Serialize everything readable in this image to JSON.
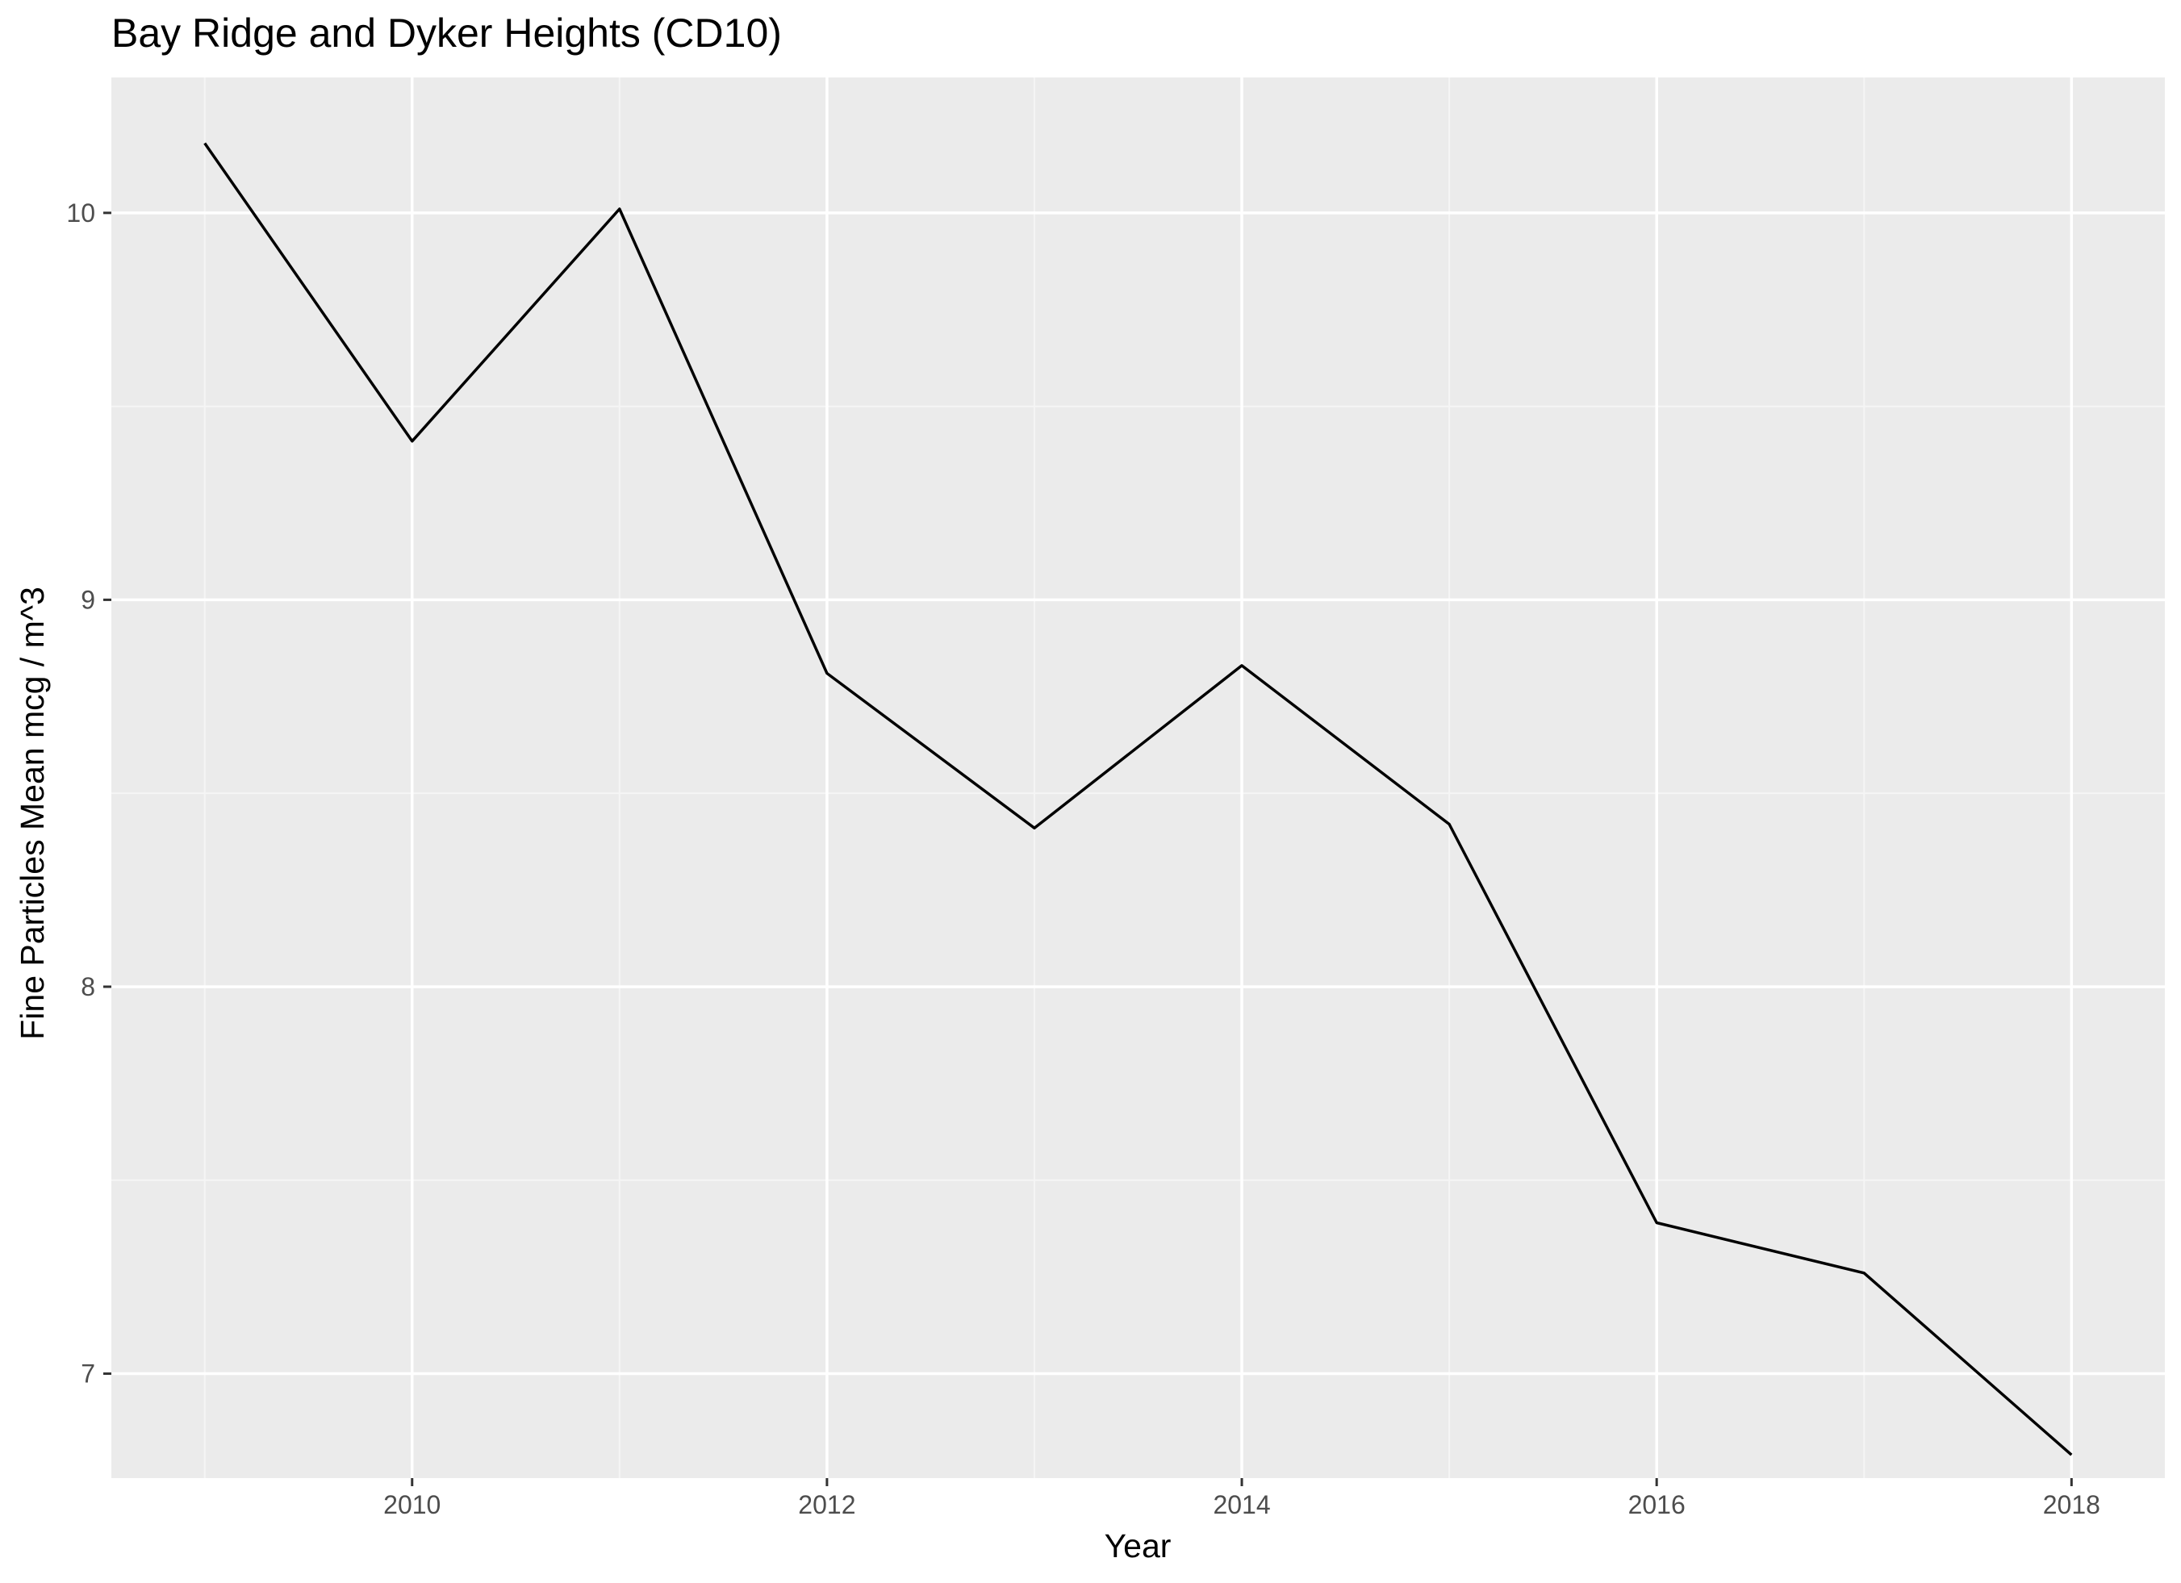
{
  "chart_data": {
    "type": "line",
    "title": "Bay Ridge and Dyker Heights (CD10)",
    "xlabel": "Year",
    "ylabel": "Fine Particles Mean mcg / m^3",
    "xlim": [
      2008.55,
      2018.45
    ],
    "ylim": [
      6.73,
      10.35
    ],
    "x_ticks": [
      2010,
      2012,
      2014,
      2016,
      2018
    ],
    "x_tick_labels": [
      "2010",
      "2012",
      "2014",
      "2016",
      "2018"
    ],
    "y_ticks": [
      7,
      8,
      9,
      10
    ],
    "y_tick_labels": [
      "7",
      "8",
      "9",
      "10"
    ],
    "grid": true,
    "legend": "none",
    "series": [
      {
        "x": [
          2009,
          2010,
          2011,
          2012,
          2013,
          2014,
          2015,
          2016,
          2017,
          2018
        ],
        "values": [
          10.18,
          9.41,
          10.01,
          8.81,
          8.41,
          8.83,
          8.42,
          7.39,
          7.26,
          6.79
        ],
        "color": "#000000"
      }
    ]
  },
  "colors": {
    "panel_background": "#EBEBEB",
    "grid_major": "#FFFFFF",
    "grid_minor": "#F5F5F5",
    "tick_label": "#4D4D4D",
    "tick_mark": "#333333",
    "line": "#000000"
  }
}
